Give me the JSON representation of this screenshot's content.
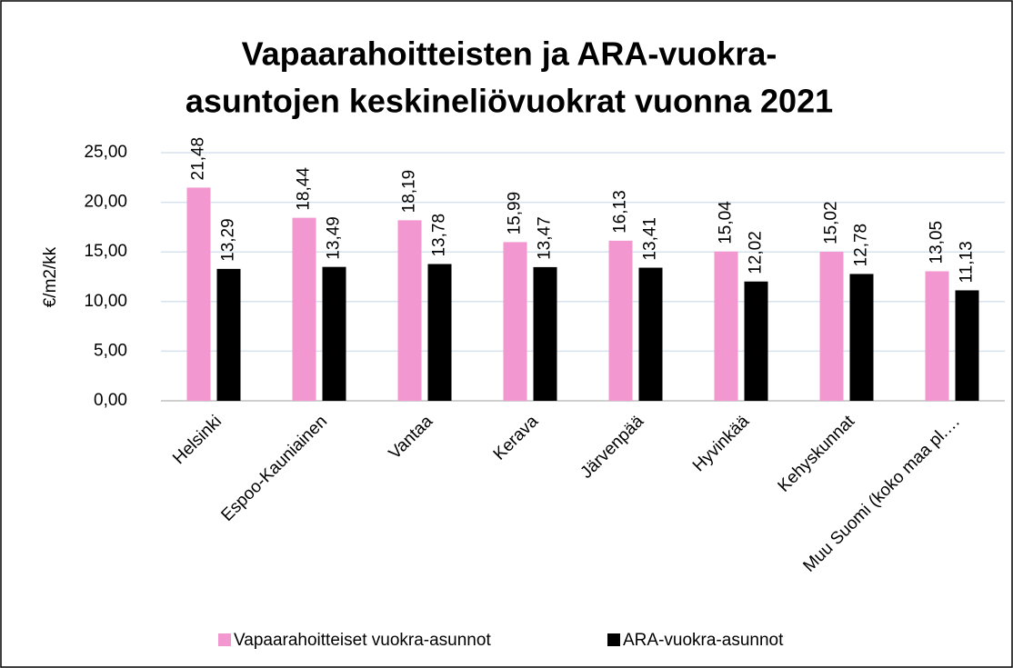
{
  "chart_data": {
    "type": "bar",
    "title": [
      "Vapaarahoitteisten ja ARA-vuokra-",
      "asuntojen keskineliövuokrat vuonna 2021"
    ],
    "y_label": "€/m2/kk",
    "categories": [
      "Helsinki",
      "Espoo-Kauniainen",
      "Vantaa",
      "Kerava",
      "Järvenpää",
      "Hyvinkää",
      "Kehyskunnat",
      "Muu Suomi (koko maa pl.…"
    ],
    "series": [
      {
        "name": "Vapaarahoitteiset vuokra-asunnot",
        "color": "#f297d0",
        "values": [
          21.48,
          18.44,
          18.19,
          15.99,
          16.13,
          15.04,
          15.02,
          13.05
        ],
        "value_labels": [
          "21,48",
          "18,44",
          "18,19",
          "15,99",
          "16,13",
          "15,04",
          "15,02",
          "13,05"
        ]
      },
      {
        "name": "ARA-vuokra-asunnot",
        "color": "#000000",
        "values": [
          13.29,
          13.49,
          13.78,
          13.47,
          13.41,
          12.02,
          12.78,
          11.13
        ],
        "value_labels": [
          "13,29",
          "13,49",
          "13,78",
          "13,47",
          "13,41",
          "12,02",
          "12,78",
          "11,13"
        ]
      }
    ],
    "ylim": [
      0,
      25
    ],
    "yticks": [
      {
        "value": 0,
        "label": "0,00"
      },
      {
        "value": 5,
        "label": "5,00"
      },
      {
        "value": 10,
        "label": "10,00"
      },
      {
        "value": 15,
        "label": "15,00"
      },
      {
        "value": 20,
        "label": "20,00"
      },
      {
        "value": 25,
        "label": "25,00"
      }
    ],
    "grid": true,
    "legend": "bottom"
  }
}
